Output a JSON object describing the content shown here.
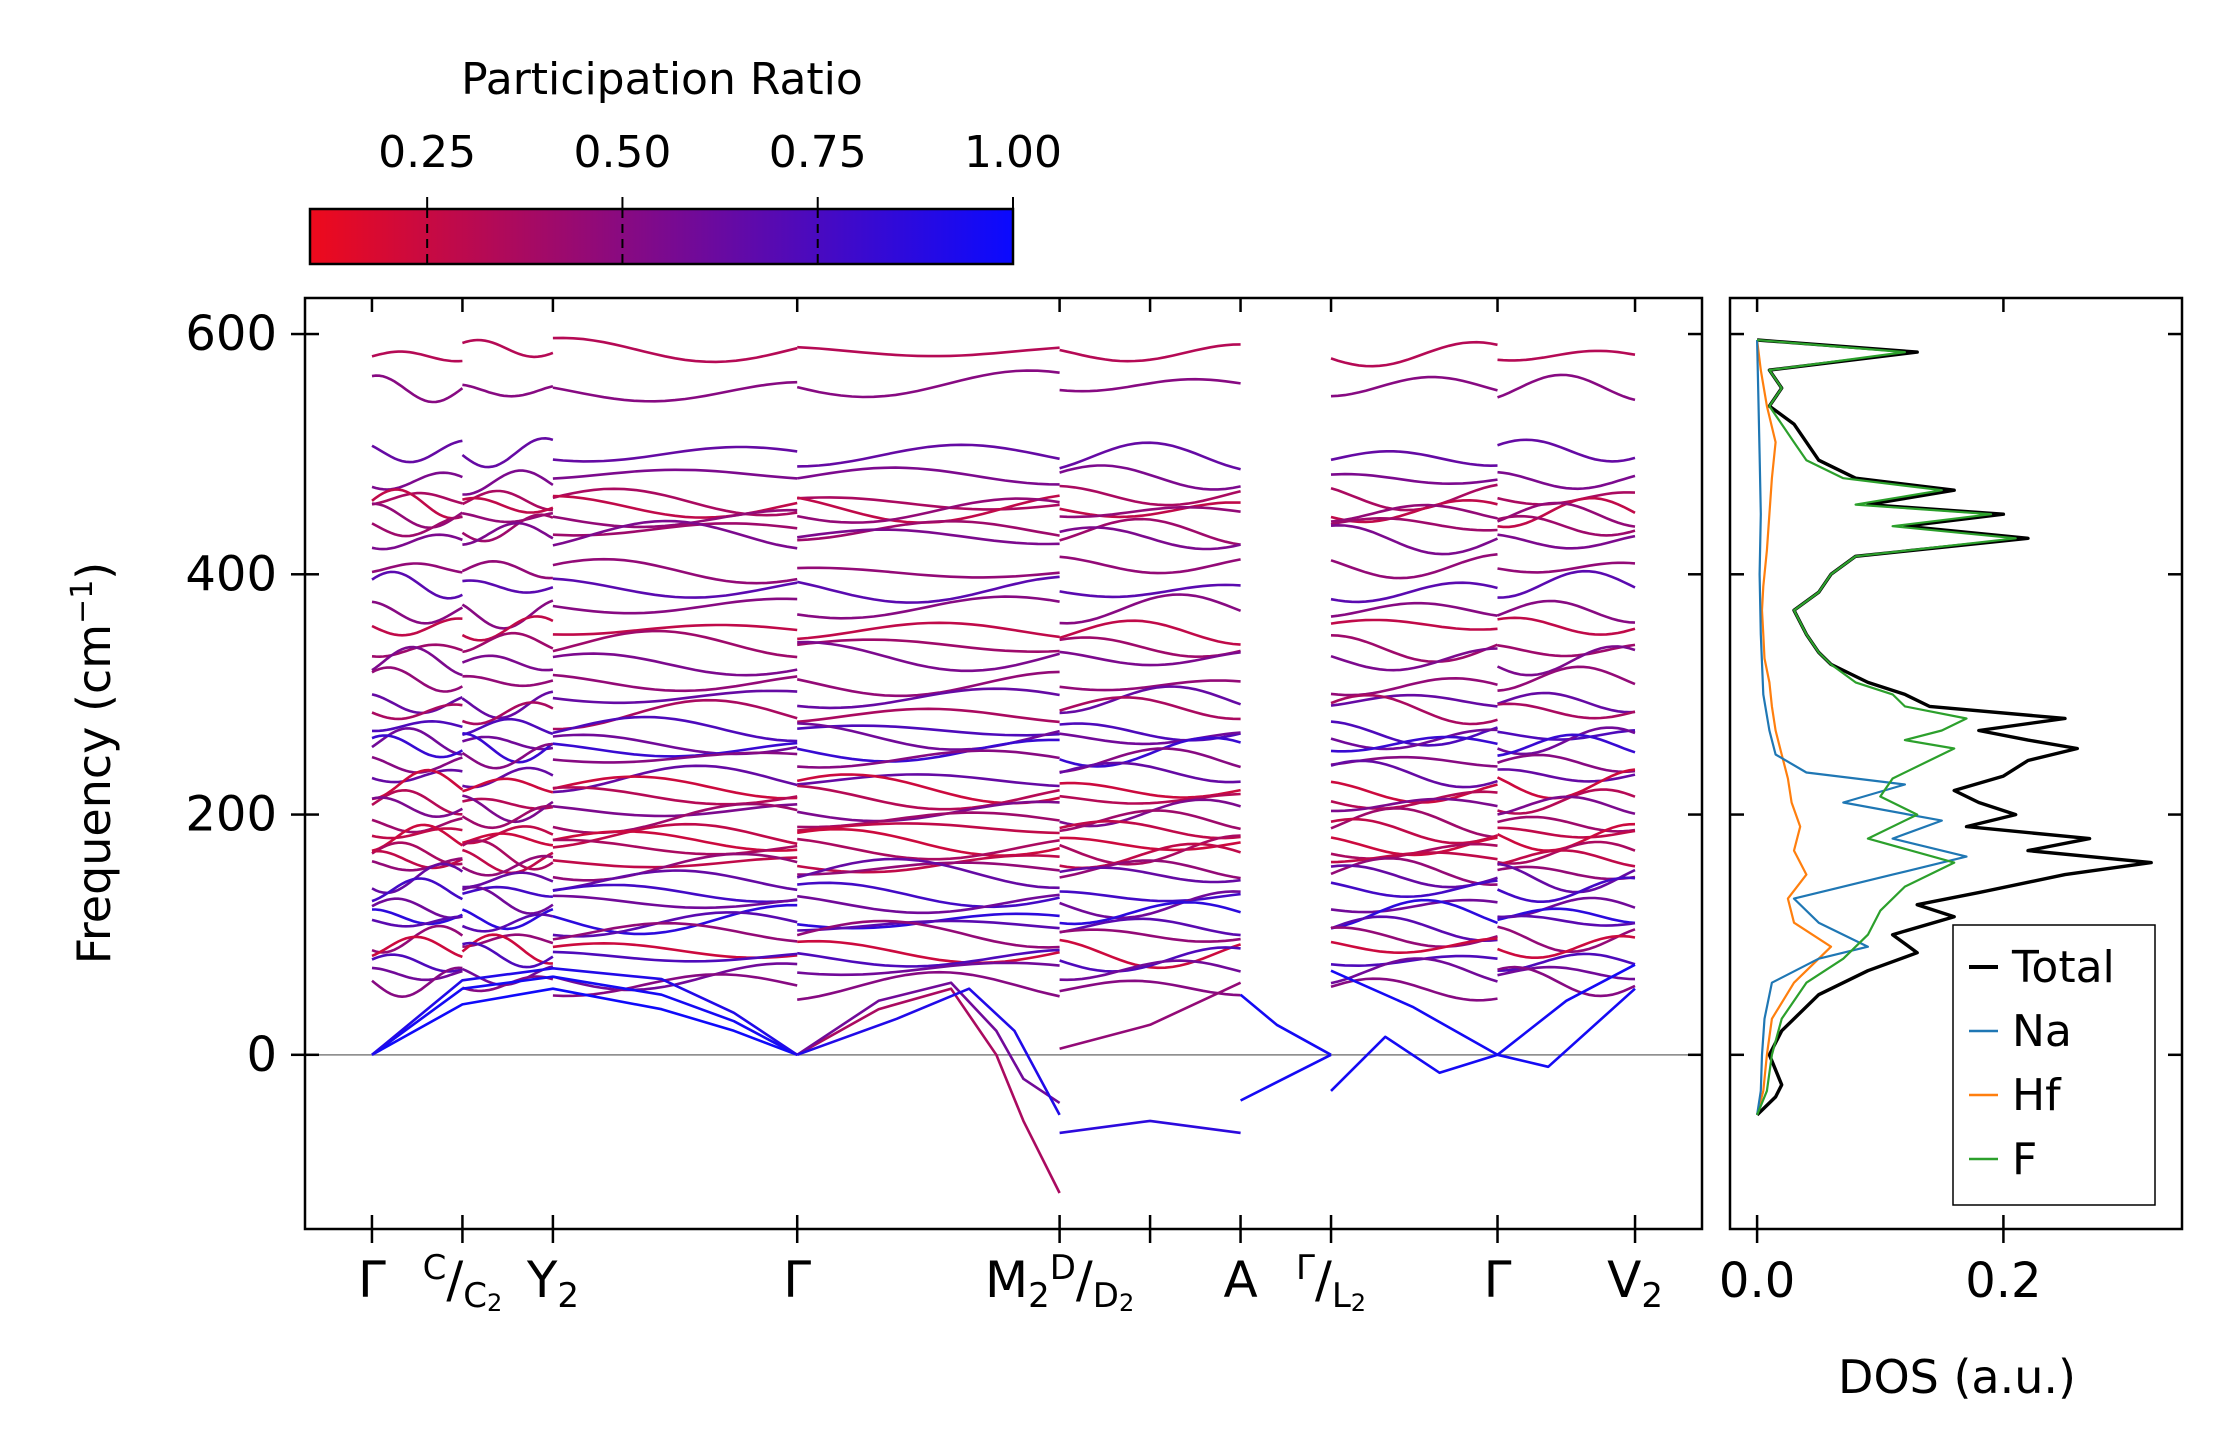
{
  "colors": {
    "cmap_low": "#ee0a1c",
    "cmap_high": "#0a0aff",
    "total": "#000000",
    "na": "#1f77b4",
    "hf": "#ff7f0e",
    "f": "#2ca02c",
    "zero_line": "#808080"
  },
  "colorbar": {
    "title": "Participation Ratio",
    "range": [
      0.1,
      1.0
    ],
    "ticks": [
      0.25,
      0.5,
      0.75,
      1.0
    ],
    "tick_labels": [
      "0.25",
      "0.50",
      "0.75",
      "1.00"
    ]
  },
  "chart_data": [
    {
      "type": "line",
      "name": "phonon-band-structure",
      "ylabel_main": "Frequency (cm",
      "ylabel_sup": "−1",
      "ylabel_close": ")",
      "ylim": [
        -145,
        630
      ],
      "yticks": [
        0,
        200,
        400,
        600
      ],
      "ytick_labels": [
        "0",
        "200",
        "400",
        "600"
      ],
      "segments": [
        {
          "from": "Γ",
          "to": "C/C2",
          "x": [
            0,
            0.5
          ]
        },
        {
          "from": "C/C2",
          "to": "Y2",
          "x": [
            0.5,
            1.0
          ]
        },
        {
          "from": "Y2",
          "to": "Γ",
          "x": [
            1.0,
            2.35
          ]
        },
        {
          "from": "Γ",
          "to": "M2",
          "x": [
            2.35,
            3.8
          ]
        },
        {
          "from": "D/D2",
          "to": "A",
          "x": [
            3.8,
            4.8
          ]
        },
        {
          "from": "Γ/L2",
          "to": "Γ",
          "x": [
            5.3,
            6.22
          ]
        },
        {
          "from": "Γ",
          "to": "V2",
          "x": [
            6.22,
            6.98
          ]
        }
      ],
      "xlim": [
        -0.37,
        7.35
      ],
      "high_symmetry_points": [
        {
          "x": 0,
          "label": "Γ"
        },
        {
          "x": 0.5,
          "label": "C/C₂"
        },
        {
          "x": 1.0,
          "label": "Y₂"
        },
        {
          "x": 2.35,
          "label": "Γ"
        },
        {
          "x": 3.8,
          "label": "M₂D/D₂"
        },
        {
          "x": 4.3,
          "label": ""
        },
        {
          "x": 4.8,
          "label": "A"
        },
        {
          "x": 5.3,
          "label": "Γ/L₂"
        },
        {
          "x": 6.22,
          "label": "Γ"
        },
        {
          "x": 6.98,
          "label": "V₂"
        }
      ],
      "xtick_text": {
        "gamma": "Γ",
        "c": "C",
        "c2": "C",
        "y2": "Y",
        "m2": "M",
        "d": "D",
        "d2": "D",
        "a": "A",
        "l2g": "Γ",
        "l2": "L",
        "v2": "V",
        "sub2": "2",
        "slash": "/"
      },
      "acoustic_branches": [
        {
          "seg": "Γ-Y2-Γ",
          "x": [
            0,
            0.5,
            1.0,
            1.6,
            2.0,
            2.35
          ],
          "y": [
            0,
            55,
            65,
            50,
            28,
            0
          ],
          "pr": 0.95
        },
        {
          "seg": "Γ-Y2-Γ",
          "x": [
            0,
            0.5,
            1.0,
            1.6,
            2.0,
            2.35
          ],
          "y": [
            0,
            42,
            55,
            38,
            20,
            0
          ],
          "pr": 0.98
        },
        {
          "seg": "Γ-Y2-Γ",
          "x": [
            0,
            0.5,
            1.0,
            1.6,
            2.0,
            2.35
          ],
          "y": [
            0,
            62,
            72,
            63,
            35,
            0
          ],
          "pr": 0.9
        },
        {
          "seg": "Γ-M2",
          "x": [
            2.35,
            2.8,
            3.2,
            3.45,
            3.6,
            3.8
          ],
          "y": [
            0,
            38,
            55,
            0,
            -55,
            -115
          ],
          "pr": 0.3
        },
        {
          "seg": "Γ-M2",
          "x": [
            2.35,
            2.8,
            3.2,
            3.45,
            3.6,
            3.8
          ],
          "y": [
            0,
            45,
            60,
            20,
            -20,
            -40
          ],
          "pr": 0.55
        },
        {
          "seg": "Γ-M2",
          "x": [
            2.35,
            2.9,
            3.3,
            3.55,
            3.8
          ],
          "y": [
            0,
            30,
            55,
            20,
            -50
          ],
          "pr": 0.9
        },
        {
          "seg": "D-A",
          "x": [
            3.8,
            4.3,
            4.8
          ],
          "y": [
            -65,
            -55,
            -65
          ],
          "pr": 0.85
        },
        {
          "seg": "D-A",
          "x": [
            3.8,
            4.3,
            4.8
          ],
          "y": [
            5,
            25,
            60
          ],
          "pr": 0.4
        },
        {
          "seg": "A-Γ",
          "x": [
            4.8,
            5.3
          ],
          "y": [
            -38,
            0
          ],
          "pr": 0.95
        },
        {
          "seg": "A-Γ",
          "x": [
            4.8,
            5.0,
            5.3
          ],
          "y": [
            50,
            25,
            0
          ],
          "pr": 0.95
        },
        {
          "seg": "L2-Γ",
          "x": [
            5.3,
            5.6,
            5.9,
            6.22
          ],
          "y": [
            -30,
            15,
            -15,
            0
          ],
          "pr": 0.95
        },
        {
          "seg": "L2-Γ",
          "x": [
            5.3,
            5.75,
            6.22
          ],
          "y": [
            70,
            40,
            0
          ],
          "pr": 0.95
        },
        {
          "seg": "Γ-V2",
          "x": [
            6.22,
            6.5,
            6.98
          ],
          "y": [
            0,
            -10,
            55
          ],
          "pr": 0.95
        },
        {
          "seg": "Γ-V2",
          "x": [
            6.22,
            6.6,
            6.98
          ],
          "y": [
            0,
            45,
            75
          ],
          "pr": 0.95
        }
      ],
      "optical_levels": [
        {
          "y": 585,
          "pr": 0.25
        },
        {
          "y": 555,
          "pr": 0.45
        },
        {
          "y": 500,
          "pr": 0.6
        },
        {
          "y": 480,
          "pr": 0.5
        },
        {
          "y": 462,
          "pr": 0.3
        },
        {
          "y": 455,
          "pr": 0.2
        },
        {
          "y": 450,
          "pr": 0.4
        },
        {
          "y": 438,
          "pr": 0.35
        },
        {
          "y": 430,
          "pr": 0.5
        },
        {
          "y": 405,
          "pr": 0.4
        },
        {
          "y": 388,
          "pr": 0.65
        },
        {
          "y": 370,
          "pr": 0.45
        },
        {
          "y": 355,
          "pr": 0.2
        },
        {
          "y": 340,
          "pr": 0.35
        },
        {
          "y": 328,
          "pr": 0.5
        },
        {
          "y": 310,
          "pr": 0.4
        },
        {
          "y": 295,
          "pr": 0.6
        },
        {
          "y": 285,
          "pr": 0.3
        },
        {
          "y": 270,
          "pr": 0.7
        },
        {
          "y": 262,
          "pr": 0.55
        },
        {
          "y": 255,
          "pr": 0.8
        },
        {
          "y": 245,
          "pr": 0.45
        },
        {
          "y": 232,
          "pr": 0.6
        },
        {
          "y": 222,
          "pr": 0.15
        },
        {
          "y": 212,
          "pr": 0.25
        },
        {
          "y": 205,
          "pr": 0.5
        },
        {
          "y": 195,
          "pr": 0.35
        },
        {
          "y": 185,
          "pr": 0.2
        },
        {
          "y": 178,
          "pr": 0.15
        },
        {
          "y": 170,
          "pr": 0.3
        },
        {
          "y": 162,
          "pr": 0.2
        },
        {
          "y": 155,
          "pr": 0.4
        },
        {
          "y": 148,
          "pr": 0.6
        },
        {
          "y": 135,
          "pr": 0.75
        },
        {
          "y": 125,
          "pr": 0.55
        },
        {
          "y": 115,
          "pr": 0.85
        },
        {
          "y": 108,
          "pr": 0.65
        },
        {
          "y": 98,
          "pr": 0.4
        },
        {
          "y": 88,
          "pr": 0.15
        },
        {
          "y": 80,
          "pr": 0.7
        },
        {
          "y": 68,
          "pr": 0.55
        },
        {
          "y": 58,
          "pr": 0.45
        }
      ]
    },
    {
      "type": "line",
      "name": "density-of-states",
      "xlabel": "DOS (a.u.)",
      "xlim": [
        -0.022,
        0.345
      ],
      "xticks": [
        0.0,
        0.2
      ],
      "xtick_labels": [
        "0.0",
        "0.2"
      ],
      "ylim": [
        -145,
        630
      ],
      "legend_position": "lower-right",
      "series": [
        {
          "name": "Total",
          "key": "total",
          "freq": [
            -50,
            -35,
            -25,
            0,
            20,
            50,
            70,
            85,
            100,
            115,
            125,
            135,
            150,
            160,
            170,
            180,
            190,
            200,
            210,
            220,
            232,
            245,
            255,
            262,
            270,
            280,
            290,
            300,
            310,
            325,
            335,
            350,
            370,
            385,
            400,
            415,
            430,
            440,
            450,
            458,
            470,
            480,
            495,
            510,
            525,
            540,
            555,
            570,
            585,
            595
          ],
          "dos": [
            0.0,
            0.015,
            0.02,
            0.01,
            0.02,
            0.05,
            0.09,
            0.13,
            0.11,
            0.16,
            0.13,
            0.18,
            0.25,
            0.32,
            0.22,
            0.27,
            0.17,
            0.21,
            0.18,
            0.16,
            0.2,
            0.22,
            0.26,
            0.22,
            0.18,
            0.25,
            0.14,
            0.12,
            0.09,
            0.06,
            0.05,
            0.04,
            0.03,
            0.05,
            0.06,
            0.08,
            0.22,
            0.12,
            0.2,
            0.09,
            0.16,
            0.08,
            0.05,
            0.04,
            0.03,
            0.01,
            0.02,
            0.01,
            0.13,
            0.0
          ]
        },
        {
          "name": "Na",
          "key": "na",
          "freq": [
            -50,
            -30,
            0,
            30,
            60,
            80,
            90,
            110,
            130,
            150,
            165,
            180,
            195,
            210,
            225,
            235,
            250,
            270,
            300,
            350,
            400,
            450,
            500,
            550,
            595
          ],
          "dos": [
            0.0,
            0.003,
            0.004,
            0.006,
            0.012,
            0.05,
            0.09,
            0.05,
            0.03,
            0.11,
            0.17,
            0.11,
            0.15,
            0.07,
            0.12,
            0.04,
            0.015,
            0.01,
            0.005,
            0.003,
            0.002,
            0.003,
            0.002,
            0.001,
            0.0
          ]
        },
        {
          "name": "Hf",
          "key": "hf",
          "freq": [
            -50,
            -30,
            0,
            30,
            60,
            80,
            90,
            110,
            130,
            150,
            170,
            190,
            210,
            230,
            250,
            270,
            290,
            310,
            330,
            350,
            370,
            390,
            420,
            450,
            480,
            510,
            540,
            570,
            595
          ],
          "dos": [
            0.0,
            0.005,
            0.008,
            0.012,
            0.03,
            0.05,
            0.06,
            0.03,
            0.025,
            0.04,
            0.03,
            0.035,
            0.028,
            0.025,
            0.02,
            0.015,
            0.012,
            0.01,
            0.006,
            0.005,
            0.004,
            0.005,
            0.008,
            0.01,
            0.012,
            0.015,
            0.008,
            0.003,
            0.0
          ]
        },
        {
          "name": "F",
          "key": "f",
          "freq": [
            -50,
            -30,
            0,
            30,
            60,
            80,
            100,
            120,
            140,
            160,
            180,
            200,
            215,
            230,
            245,
            255,
            262,
            270,
            280,
            290,
            300,
            310,
            325,
            335,
            350,
            370,
            385,
            400,
            415,
            430,
            440,
            450,
            458,
            470,
            480,
            495,
            510,
            525,
            540,
            555,
            570,
            585,
            595
          ],
          "dos": [
            0.0,
            0.008,
            0.012,
            0.02,
            0.04,
            0.07,
            0.09,
            0.1,
            0.12,
            0.16,
            0.09,
            0.13,
            0.1,
            0.11,
            0.14,
            0.16,
            0.12,
            0.15,
            0.17,
            0.12,
            0.11,
            0.08,
            0.06,
            0.05,
            0.04,
            0.03,
            0.05,
            0.06,
            0.08,
            0.21,
            0.11,
            0.19,
            0.08,
            0.15,
            0.07,
            0.04,
            0.03,
            0.02,
            0.01,
            0.02,
            0.01,
            0.12,
            0.0
          ]
        }
      ]
    }
  ]
}
